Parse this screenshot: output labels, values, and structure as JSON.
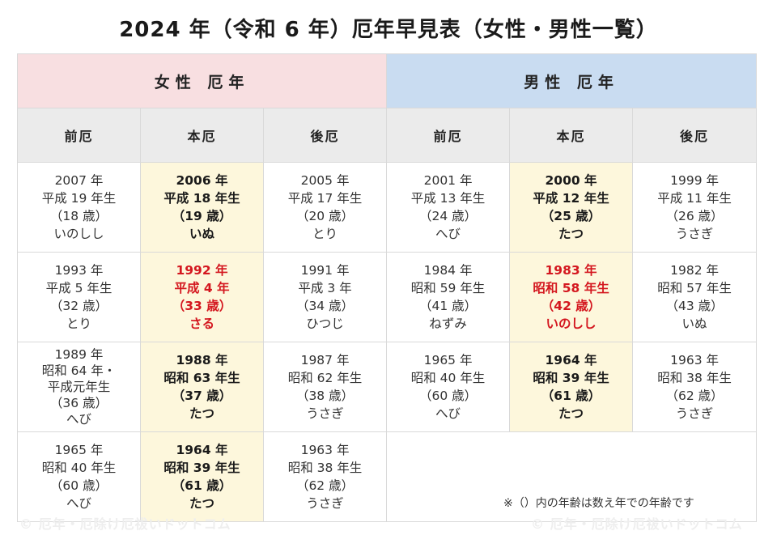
{
  "title": "2024 年（令和 6 年）厄年早見表（女性・男性一覧）",
  "groups": {
    "female": "女性 厄年",
    "male": "男性 厄年"
  },
  "columns": [
    "前厄",
    "本厄",
    "後厄",
    "前厄",
    "本厄",
    "後厄"
  ],
  "rows": [
    [
      [
        "2007 年",
        "平成 19 年生",
        "（18 歳）",
        "いのしし"
      ],
      [
        "2006 年",
        "平成 18 年生",
        "（19 歳）",
        "いぬ"
      ],
      [
        "2005 年",
        "平成 17 年生",
        "（20 歳）",
        "とり"
      ],
      [
        "2001 年",
        "平成 13 年生",
        "（24 歳）",
        "へび"
      ],
      [
        "2000 年",
        "平成 12 年生",
        "（25 歳）",
        "たつ"
      ],
      [
        "1999 年",
        "平成 11 年生",
        "（26 歳）",
        "うさぎ"
      ]
    ],
    [
      [
        "1993 年",
        "平成 5 年生",
        "（32 歳）",
        "とり"
      ],
      [
        "1992 年",
        "平成 4 年",
        "（33 歳）",
        "さる"
      ],
      [
        "1991 年",
        "平成 3 年",
        "（34 歳）",
        "ひつじ"
      ],
      [
        "1984 年",
        "昭和 59 年生",
        "（41 歳）",
        "ねずみ"
      ],
      [
        "1983 年",
        "昭和 58 年生",
        "（42 歳）",
        "いのしし"
      ],
      [
        "1982 年",
        "昭和 57 年生",
        "（43 歳）",
        "いぬ"
      ]
    ],
    [
      [
        "1989 年",
        "昭和 64 年・",
        "平成元年生",
        "（36 歳）",
        "へび"
      ],
      [
        "1988 年",
        "昭和 63 年生",
        "（37 歳）",
        "たつ"
      ],
      [
        "1987 年",
        "昭和 62 年生",
        "（38 歳）",
        "うさぎ"
      ],
      [
        "1965 年",
        "昭和 40 年生",
        "（60 歳）",
        "へび"
      ],
      [
        "1964 年",
        "昭和 39 年生",
        "（61 歳）",
        "たつ"
      ],
      [
        "1963 年",
        "昭和 38 年生",
        "（62 歳）",
        "うさぎ"
      ]
    ],
    [
      [
        "1965 年",
        "昭和 40 年生",
        "（60 歳）",
        "へび"
      ],
      [
        "1964 年",
        "昭和 39 年生",
        "（61 歳）",
        "たつ"
      ],
      [
        "1963 年",
        "昭和 38 年生",
        "（62 歳）",
        "うさぎ"
      ]
    ]
  ],
  "note": "※（）内の年齢は数え年での年齢です",
  "watermark": "© 厄年・厄除け厄祓いドットコム",
  "colors": {
    "female_header": "#f8dfe1",
    "male_header": "#c9dcf1",
    "honyaku_bg": "#fdf7dc",
    "taiyaku_text": "#d4171f"
  }
}
